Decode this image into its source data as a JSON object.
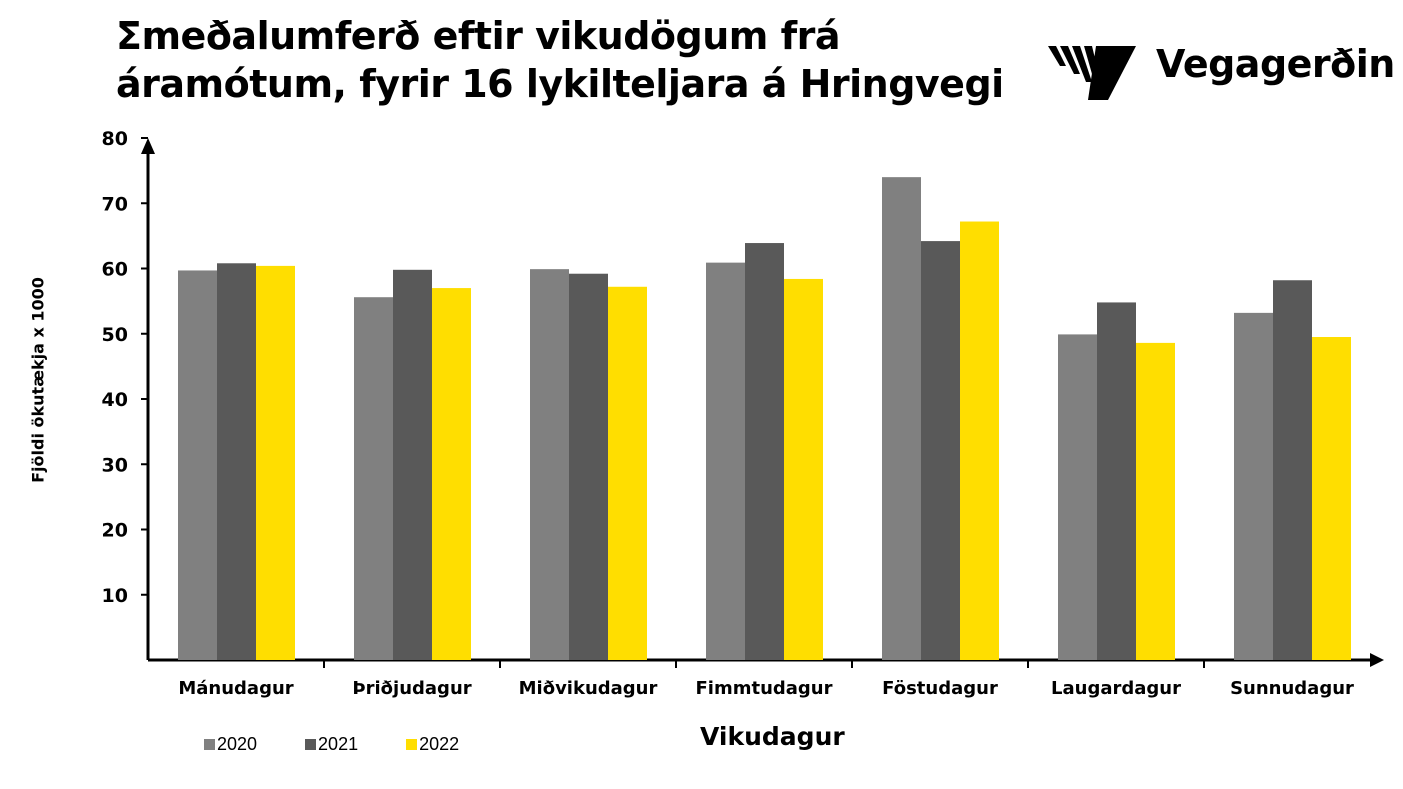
{
  "title": {
    "line1": "Σmeðalumferð eftir vikudögum frá",
    "line2": "áramótum, fyrir 16 lykilteljara á Hringvegi"
  },
  "logo": {
    "text": "Vegagerðin",
    "icon": "vegagerdin-stripes-logo"
  },
  "colors": {
    "2020": "#808080",
    "2021": "#595959",
    "2022": "#FFDE00",
    "axis": "#000000"
  },
  "chart_data": {
    "type": "bar",
    "title": "Σmeðalumferð eftir vikudögum frá áramótum, fyrir 16 lykilteljara á Hringvegi",
    "xlabel": "Vikudagur",
    "ylabel": "Fjöldi ökutækja x 1000",
    "ylim": [
      0,
      80
    ],
    "yticks": [
      "10",
      "20",
      "30",
      "40",
      "50",
      "60",
      "70",
      "80"
    ],
    "grid": false,
    "legend_position": "bottom-left",
    "categories": [
      "Mánudagur",
      "Þriðjudagur",
      "Miðvikudagur",
      "Fimmtudagur",
      "Föstudagur",
      "Laugardagur",
      "Sunnudagur"
    ],
    "series": [
      {
        "name": "2020",
        "values": [
          59.7,
          55.6,
          59.9,
          60.9,
          74.0,
          49.9,
          53.2
        ]
      },
      {
        "name": "2021",
        "values": [
          60.8,
          59.8,
          59.2,
          63.9,
          64.2,
          54.8,
          58.2
        ]
      },
      {
        "name": "2022",
        "values": [
          60.4,
          57.0,
          57.2,
          58.4,
          67.2,
          48.6,
          49.5
        ]
      }
    ]
  }
}
